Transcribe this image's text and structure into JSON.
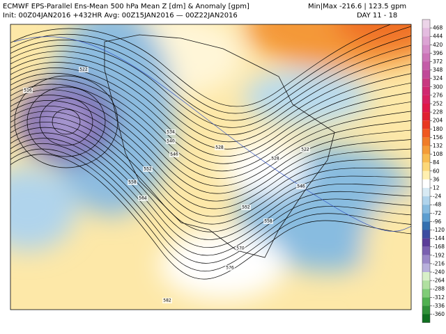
{
  "header": {
    "line1": "ECMWF EPS-Parallel Ens-Mean 500 hPa Mean Z [dm] & Anomaly [gpm]",
    "line2": "Init: 00Z04JAN2016 +432HR  Avg: 00Z15JAN2016 — 00Z22JAN2016",
    "minmax": "Min|Max -216.6 | 123.5 gpm",
    "days": "DAY 11 - 18"
  },
  "contour_labels": [
    "516",
    "522",
    "528",
    "534",
    "540",
    "546",
    "552",
    "558",
    "564",
    "570",
    "576",
    "582",
    "522",
    "528",
    "546",
    "552",
    "558"
  ],
  "colorbar": {
    "labels": [
      468,
      444,
      420,
      396,
      372,
      348,
      324,
      300,
      276,
      252,
      228,
      204,
      180,
      156,
      132,
      108,
      84,
      60,
      36,
      12,
      -24,
      -48,
      -72,
      -96,
      -120,
      -144,
      -168,
      -192,
      -216,
      -240,
      -264,
      -288,
      -312,
      -336,
      -360
    ],
    "colors": [
      "#ecd4e8",
      "#e4bce0",
      "#dca4d4",
      "#d48cc8",
      "#cc74b8",
      "#c45ca8",
      "#c04898",
      "#c83880",
      "#d02870",
      "#d82060",
      "#e01848",
      "#e02030",
      "#e83820",
      "#f05820",
      "#f07c28",
      "#f49c38",
      "#f8bc50",
      "#fcd878",
      "#fff0b0",
      "#ffffff",
      "#d8eaf4",
      "#b0d4ec",
      "#88bce0",
      "#5c9ed0",
      "#3470b0",
      "#3c4ca0",
      "#5a3c98",
      "#7a60b0",
      "#9a88c8",
      "#b8b0dc",
      "#d8f0c8",
      "#b0e0a0",
      "#80cc78",
      "#50b050",
      "#309038",
      "#107020"
    ]
  }
}
